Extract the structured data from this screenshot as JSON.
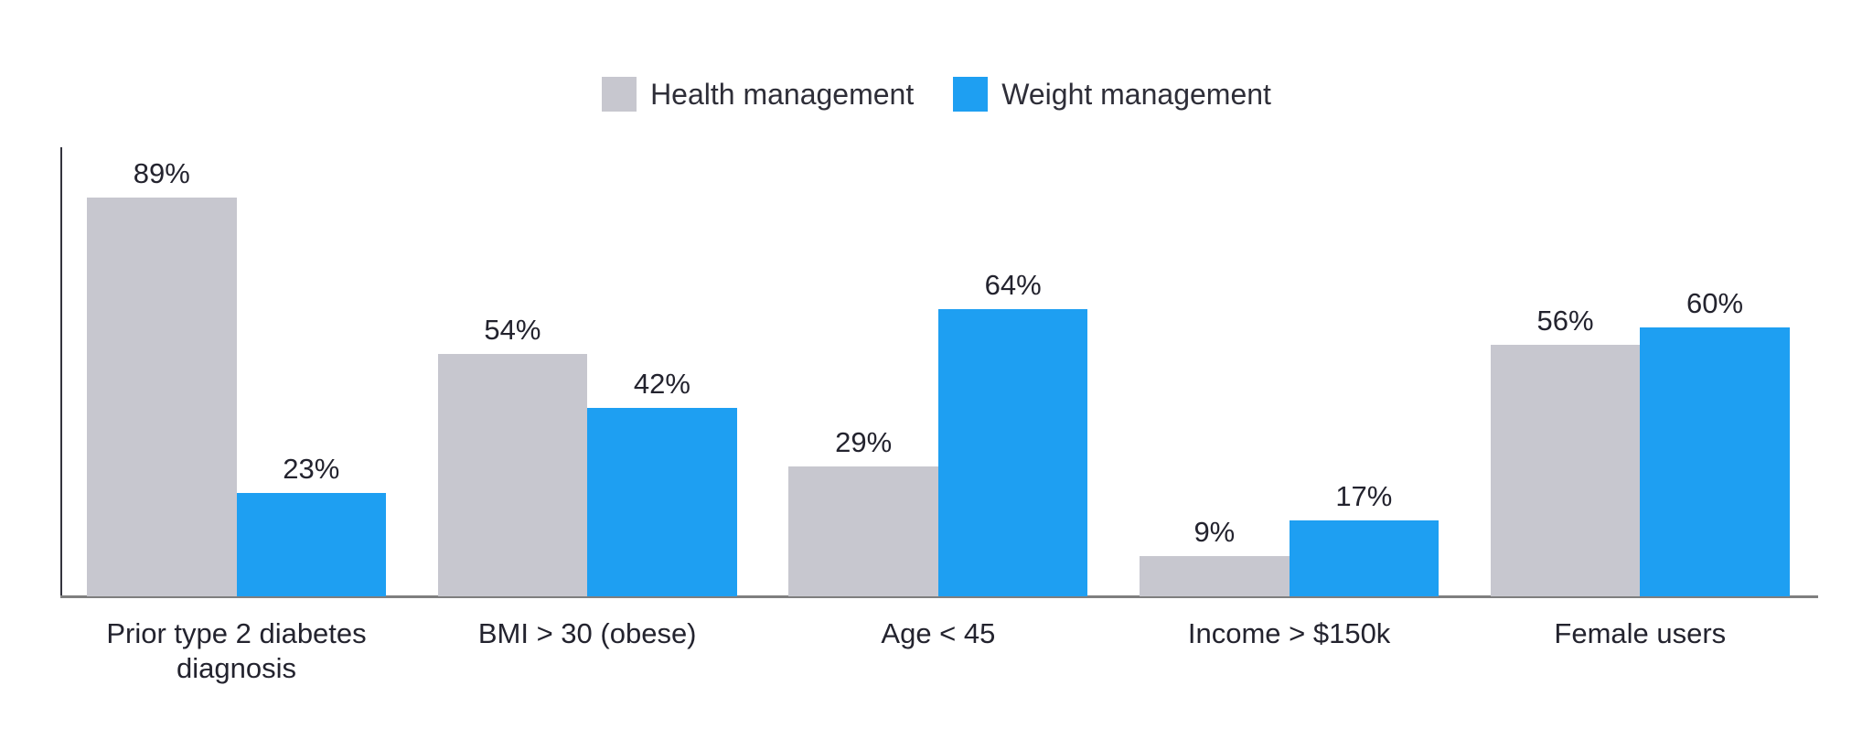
{
  "legend": {
    "items": [
      {
        "label": "Health management",
        "color": "#c7c7cf"
      },
      {
        "label": "Weight management",
        "color": "#1e9ff2"
      }
    ]
  },
  "chart_data": {
    "type": "bar",
    "categories": [
      "Prior type 2 diabetes diagnosis",
      "BMI > 30 (obese)",
      "Age < 45",
      "Income > $150k",
      "Female users"
    ],
    "series": [
      {
        "name": "Health management",
        "color": "#c7c7cf",
        "values": [
          89,
          54,
          29,
          9,
          56
        ]
      },
      {
        "name": "Weight management",
        "color": "#1e9ff2",
        "values": [
          23,
          42,
          64,
          17,
          60
        ]
      }
    ],
    "value_labels": [
      [
        "89%",
        "54%",
        "29%",
        "9%",
        "56%"
      ],
      [
        "23%",
        "42%",
        "64%",
        "17%",
        "60%"
      ]
    ],
    "value_suffix": "%",
    "ylim": [
      0,
      100
    ],
    "grid": false,
    "legend_position": "top",
    "axis_colors": {
      "y_axis": "#33333d",
      "x_axis": "#7f7f7f"
    }
  }
}
